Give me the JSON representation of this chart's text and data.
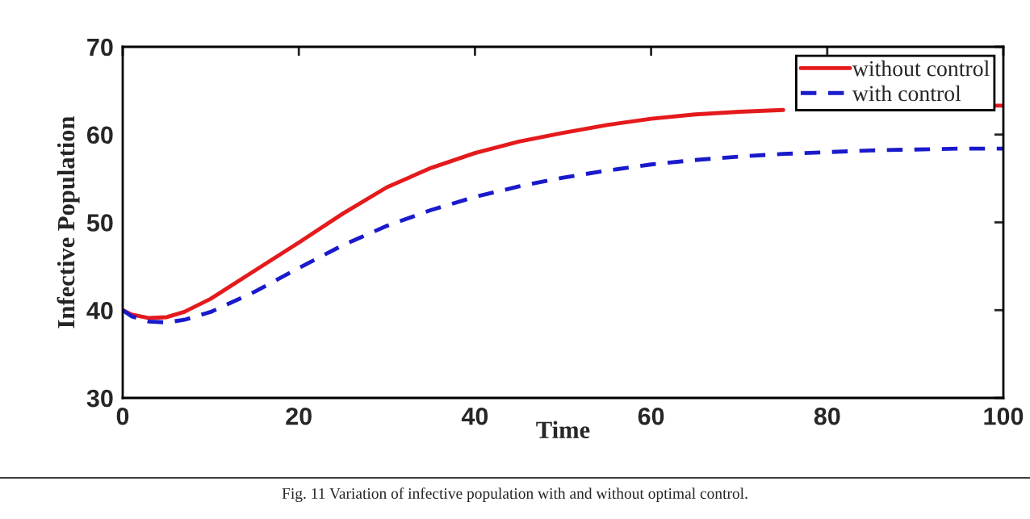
{
  "chart_data": {
    "type": "line",
    "xlabel": "Time",
    "ylabel": "Infective Population",
    "xlim": [
      0,
      100
    ],
    "ylim": [
      30,
      70
    ],
    "xticks": [
      0,
      20,
      40,
      60,
      80,
      100
    ],
    "yticks": [
      30,
      40,
      50,
      60,
      70
    ],
    "grid": false,
    "legend": "top right",
    "annotations": [
      "Fig. 11 Variation of infective population with and without optimal control."
    ],
    "series": [
      {
        "name": "without control",
        "color": "#e41a1c",
        "line_style": "solid",
        "x": [
          0,
          1,
          3,
          5,
          7,
          10,
          15,
          20,
          25,
          30,
          35,
          40,
          45,
          50,
          55,
          60,
          65,
          70,
          75,
          80,
          99,
          100
        ],
        "values": [
          40,
          39.5,
          39.1,
          39.2,
          39.8,
          41.3,
          44.5,
          47.7,
          51,
          54,
          56.2,
          57.9,
          59.2,
          60.2,
          61.1,
          61.8,
          62.3,
          62.6,
          62.8,
          null,
          63.3,
          63.3
        ]
      },
      {
        "name": "with control",
        "color": "#1a1acc",
        "line_style": "dashed",
        "x": [
          0,
          1,
          3,
          5,
          7,
          10,
          15,
          20,
          25,
          30,
          35,
          40,
          45,
          50,
          55,
          60,
          65,
          70,
          75,
          80,
          85,
          90,
          95,
          100
        ],
        "values": [
          40,
          39.3,
          38.7,
          38.6,
          38.9,
          39.8,
          42.1,
          44.8,
          47.4,
          49.6,
          51.4,
          52.9,
          54.1,
          55.1,
          55.9,
          56.6,
          57.1,
          57.5,
          57.8,
          58,
          58.2,
          58.3,
          58.4,
          58.4
        ]
      }
    ]
  }
}
